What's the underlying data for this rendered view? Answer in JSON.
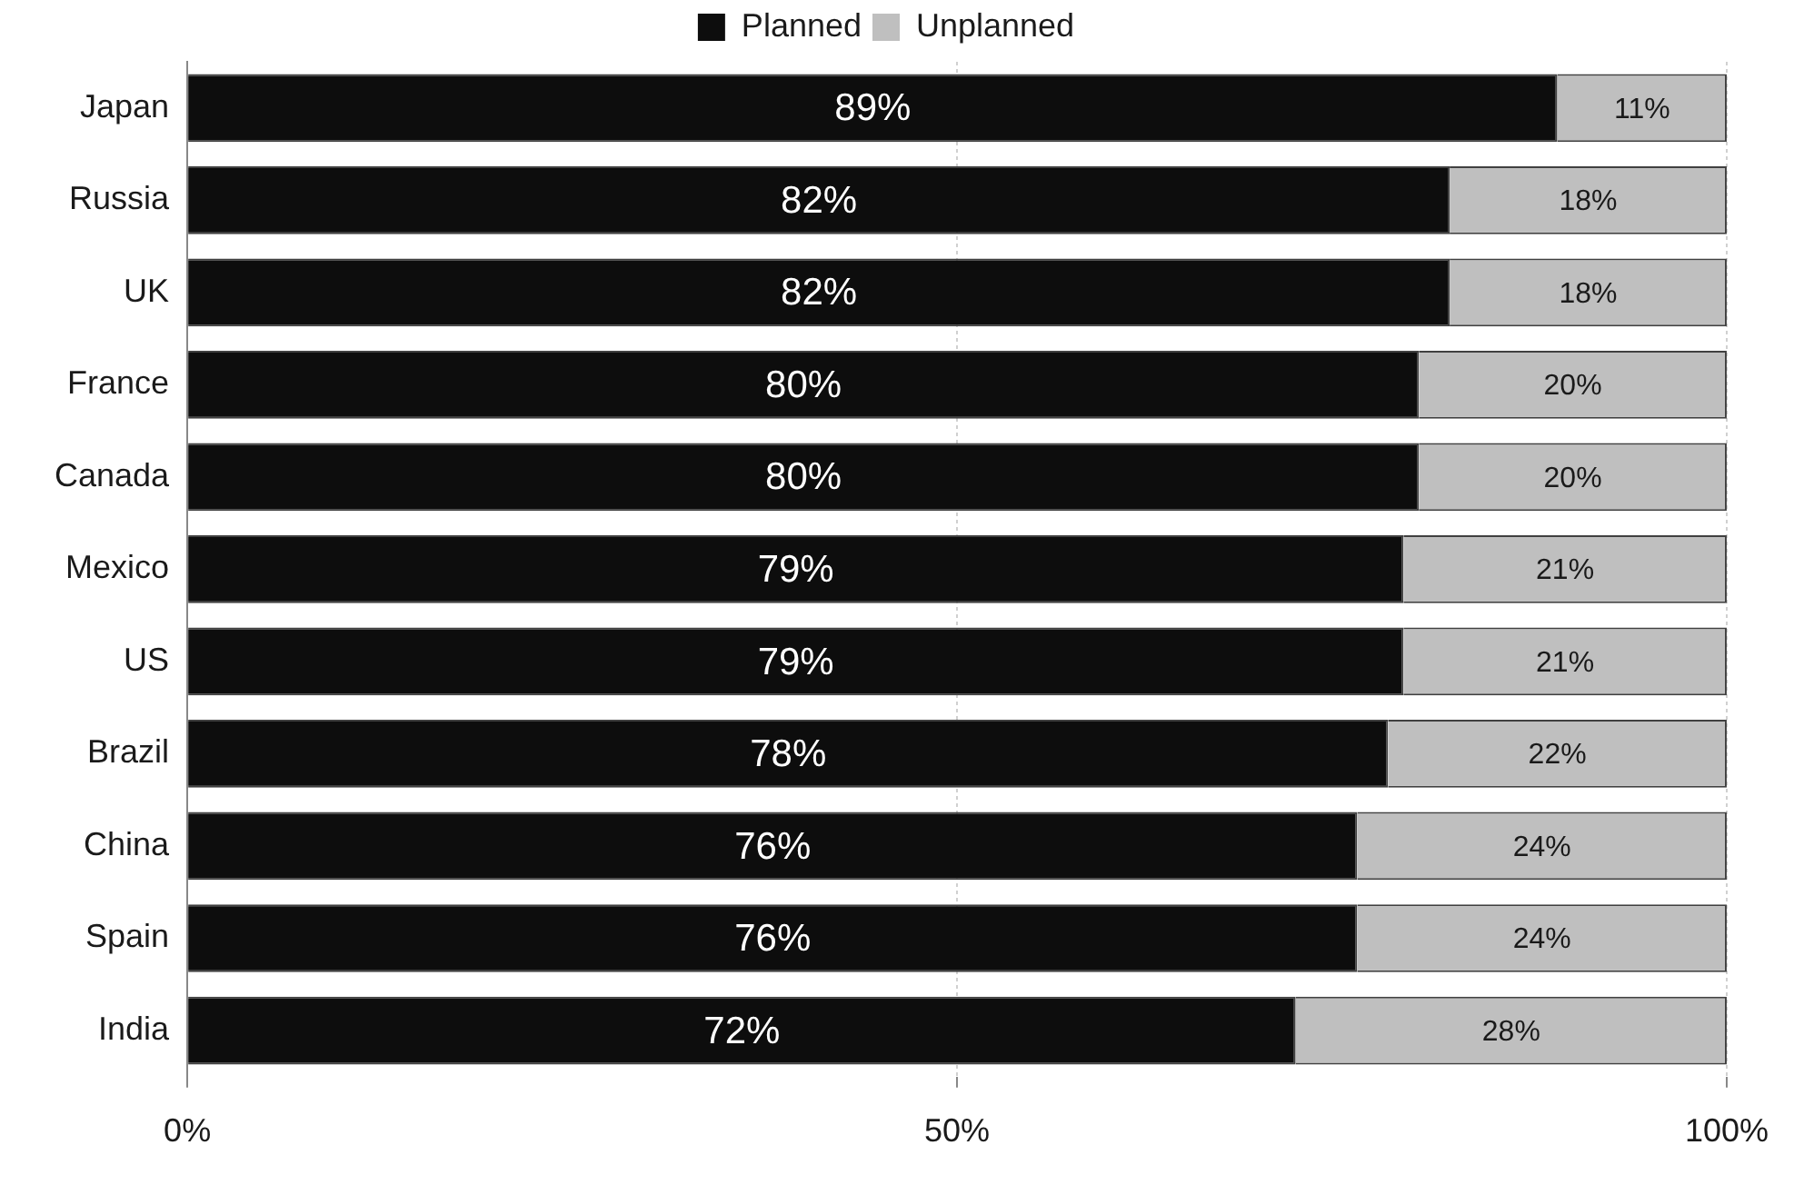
{
  "chart_data": {
    "type": "bar",
    "orientation": "horizontal",
    "stacked": true,
    "categories": [
      "Japan",
      "Russia",
      "UK",
      "France",
      "Canada",
      "Mexico",
      "US",
      "Brazil",
      "China",
      "Spain",
      "India"
    ],
    "series": [
      {
        "name": "Planned",
        "color": "#0d0d0d",
        "values": [
          89,
          82,
          82,
          80,
          80,
          79,
          79,
          78,
          76,
          76,
          72
        ],
        "value_labels": [
          "89%",
          "82%",
          "82%",
          "80%",
          "80%",
          "79%",
          "79%",
          "78%",
          "76%",
          "76%",
          "72%"
        ]
      },
      {
        "name": "Unplanned",
        "color": "#bfbfbf",
        "values": [
          11,
          18,
          18,
          20,
          20,
          21,
          21,
          22,
          24,
          24,
          28
        ],
        "value_labels": [
          "11%",
          "18%",
          "18%",
          "20%",
          "20%",
          "21%",
          "21%",
          "22%",
          "24%",
          "24%",
          "28%"
        ]
      }
    ],
    "xlim": [
      0,
      100
    ],
    "xticks": [
      {
        "value": 0,
        "label": "0%"
      },
      {
        "value": 50,
        "label": "50%"
      },
      {
        "value": 100,
        "label": "100%"
      }
    ],
    "grid": "x",
    "legend": "top"
  }
}
